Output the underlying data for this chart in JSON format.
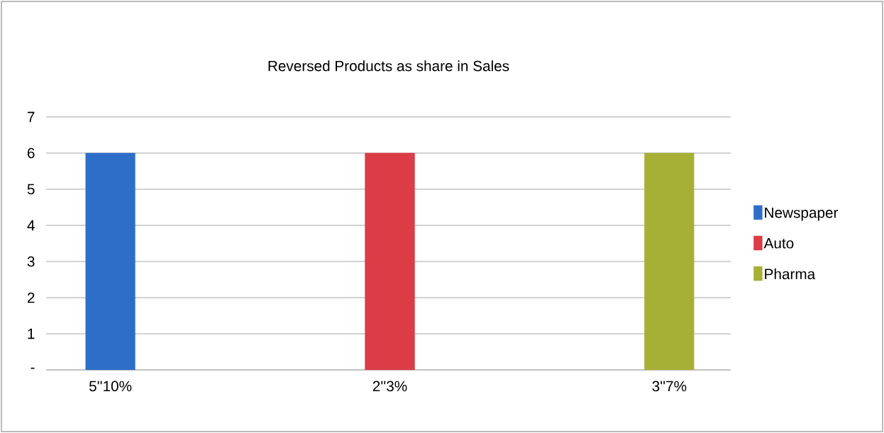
{
  "chart_data": {
    "type": "bar",
    "title": "Reversed Products as share in Sales",
    "categories": [
      "5''10%",
      "2''3%",
      "3''7%"
    ],
    "series": [
      {
        "name": "Newspaper",
        "color": "#2e6ec8",
        "values": [
          6,
          null,
          null
        ]
      },
      {
        "name": "Auto",
        "color": "#dc3c46",
        "values": [
          null,
          6,
          null
        ]
      },
      {
        "name": "Pharma",
        "color": "#a6b036",
        "values": [
          null,
          null,
          6
        ]
      }
    ],
    "ylim": [
      0,
      7
    ],
    "yticks": [
      {
        "value": 0,
        "label": "-"
      },
      1,
      2,
      3,
      4,
      5,
      6,
      7
    ],
    "grid": "y",
    "legend": "right"
  }
}
